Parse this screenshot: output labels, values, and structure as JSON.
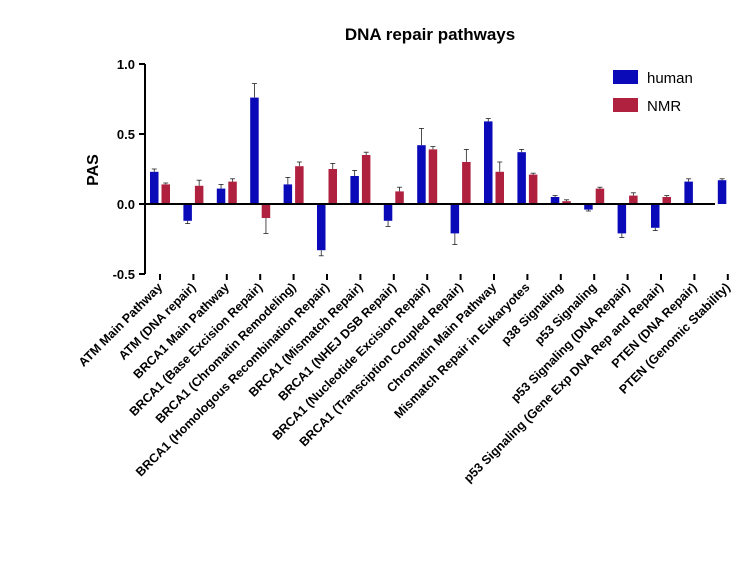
{
  "chart_data": {
    "type": "bar",
    "title": "DNA repair pathways",
    "xlabel": "",
    "ylabel": "PAS",
    "ylim": [
      -0.5,
      1.0
    ],
    "yticks": [
      "1.0",
      "0.5",
      "0.0",
      "-0.5"
    ],
    "ytick_values": [
      1.0,
      0.5,
      0.0,
      -0.5
    ],
    "grid": false,
    "legend_position": "top-right",
    "error_bars": true,
    "categories": [
      "ATM Main Pathway",
      "ATM (DNA repair)",
      "BRCA1 Main Pathway",
      "BRCA1 (Base Excision Repair)",
      "BRCA1 (Chromatin Remodeling)",
      "BRCA1 (Homologous Recombination Repair)",
      "BRCA1 (Mismatch Repair)",
      "BRCA1 (NHEJ DSB Repair)",
      "BRCA1 (Nucleotide Excision Repair)",
      "BRCA1 (Transciption Coupled Repair)",
      "Chromatin Main Pathway",
      "Mismatch Repair in Eukaryotes",
      "p38 Signaling",
      "p53 Signaling",
      "p53 Signaling (DNA Repair)",
      "p53 Signaling (Gene Exp DNA Rep and Repair)",
      "PTEN (DNA Repair)",
      "PTEN (Genomic Stability)"
    ],
    "series": [
      {
        "name": "human",
        "color": "#0a0ab8",
        "values": [
          0.23,
          -0.12,
          0.11,
          0.76,
          0.14,
          -0.33,
          0.2,
          -0.12,
          0.42,
          -0.21,
          0.59,
          0.37,
          0.05,
          -0.04,
          -0.21,
          -0.17,
          0.16,
          0.17
        ],
        "errors": [
          0.02,
          0.02,
          0.03,
          0.1,
          0.05,
          0.04,
          0.04,
          0.04,
          0.12,
          0.08,
          0.02,
          0.02,
          0.01,
          0.01,
          0.03,
          0.02,
          0.02,
          0.01
        ]
      },
      {
        "name": "NMR",
        "color": "#b0203f",
        "values": [
          0.14,
          0.13,
          0.16,
          -0.1,
          0.27,
          0.25,
          0.35,
          0.09,
          0.39,
          0.3,
          0.23,
          0.21,
          0.02,
          0.11,
          0.06,
          0.05,
          0.0,
          0.0
        ],
        "errors": [
          0.01,
          0.04,
          0.02,
          0.11,
          0.03,
          0.04,
          0.02,
          0.03,
          0.02,
          0.09,
          0.07,
          0.01,
          0.01,
          0.01,
          0.02,
          0.01,
          0.0,
          0.0
        ]
      }
    ]
  }
}
